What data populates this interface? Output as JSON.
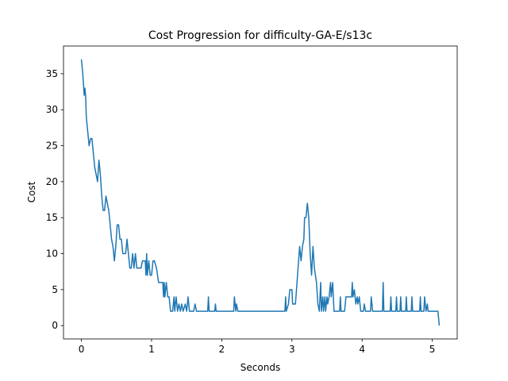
{
  "chart_data": {
    "type": "line",
    "title": "Cost Progression for difficulty-GA-E/s13c",
    "x_label": "Seconds",
    "y_label": "Cost",
    "color": "#1f77b4",
    "x": [
      0.0,
      0.02,
      0.04,
      0.05,
      0.06,
      0.07,
      0.09,
      0.11,
      0.13,
      0.15,
      0.17,
      0.19,
      0.21,
      0.23,
      0.25,
      0.27,
      0.29,
      0.31,
      0.33,
      0.35,
      0.37,
      0.39,
      0.41,
      0.43,
      0.45,
      0.47,
      0.49,
      0.51,
      0.53,
      0.55,
      0.57,
      0.59,
      0.63,
      0.65,
      0.67,
      0.69,
      0.71,
      0.73,
      0.75,
      0.77,
      0.79,
      0.85,
      0.87,
      0.91,
      0.92,
      0.93,
      0.94,
      0.96,
      0.98,
      1.0,
      1.02,
      1.04,
      1.07,
      1.1,
      1.16,
      1.17,
      1.18,
      1.19,
      1.21,
      1.23,
      1.25,
      1.27,
      1.3,
      1.32,
      1.33,
      1.35,
      1.37,
      1.39,
      1.41,
      1.43,
      1.45,
      1.48,
      1.5,
      1.52,
      1.54,
      1.6,
      1.62,
      1.64,
      1.8,
      1.81,
      1.82,
      1.9,
      1.91,
      1.92,
      2.17,
      2.18,
      2.2,
      2.21,
      2.23,
      2.9,
      2.91,
      2.92,
      2.95,
      2.97,
      3.0,
      3.01,
      3.05,
      3.08,
      3.11,
      3.13,
      3.15,
      3.17,
      3.18,
      3.2,
      3.22,
      3.24,
      3.26,
      3.28,
      3.3,
      3.32,
      3.35,
      3.37,
      3.39,
      3.41,
      3.42,
      3.44,
      3.45,
      3.47,
      3.48,
      3.5,
      3.51,
      3.53,
      3.55,
      3.56,
      3.58,
      3.6,
      3.68,
      3.69,
      3.7,
      3.75,
      3.77,
      3.85,
      3.86,
      3.87,
      3.89,
      3.91,
      3.93,
      3.94,
      3.96,
      3.98,
      4.02,
      4.03,
      4.05,
      4.12,
      4.13,
      4.15,
      4.29,
      4.3,
      4.31,
      4.4,
      4.41,
      4.42,
      4.48,
      4.49,
      4.5,
      4.54,
      4.55,
      4.56,
      4.62,
      4.63,
      4.64,
      4.7,
      4.71,
      4.72,
      4.82,
      4.83,
      4.84,
      4.88,
      4.89,
      4.9,
      4.91,
      4.93,
      4.94,
      5.08,
      5.1
    ],
    "values": [
      37,
      35,
      32,
      33,
      32,
      29,
      27,
      25,
      26,
      26,
      24,
      22,
      21,
      20,
      23,
      21,
      18,
      16,
      16,
      18,
      17,
      16,
      14,
      12,
      11,
      9,
      11,
      14,
      14,
      12,
      12,
      10,
      10,
      12,
      10,
      8,
      8,
      10,
      8,
      10,
      8,
      8,
      9,
      9,
      7,
      10,
      7,
      9,
      7,
      7,
      9,
      9,
      8,
      6,
      6,
      4,
      6,
      4,
      6,
      4,
      4,
      2,
      2,
      4,
      2,
      4,
      2,
      3,
      2,
      3,
      2,
      3,
      2,
      4,
      2,
      2,
      3,
      2,
      2,
      4,
      2,
      2,
      3,
      2,
      2,
      4,
      2,
      3,
      2,
      2,
      4,
      2,
      3,
      5,
      5,
      3,
      3,
      7,
      11,
      9,
      11,
      12,
      15,
      15,
      17,
      15,
      10,
      7,
      11,
      8,
      6,
      3,
      2,
      6,
      2,
      4,
      2,
      4,
      2,
      4,
      3,
      4,
      6,
      4,
      6,
      2,
      2,
      4,
      2,
      2,
      4,
      4,
      6,
      4,
      5,
      3,
      4,
      3,
      4,
      2,
      2,
      3,
      2,
      2,
      4,
      2,
      2,
      6,
      2,
      2,
      4,
      2,
      2,
      4,
      2,
      2,
      4,
      2,
      2,
      4,
      2,
      2,
      4,
      2,
      2,
      4,
      2,
      2,
      4,
      3,
      2,
      3,
      2,
      2,
      0
    ],
    "xlim": [
      -0.255,
      5.355
    ],
    "ylim": [
      -1.85,
      38.85
    ],
    "xticks": [
      0,
      1,
      2,
      3,
      4,
      5
    ],
    "yticks": [
      0,
      5,
      10,
      15,
      20,
      25,
      30,
      35
    ]
  }
}
